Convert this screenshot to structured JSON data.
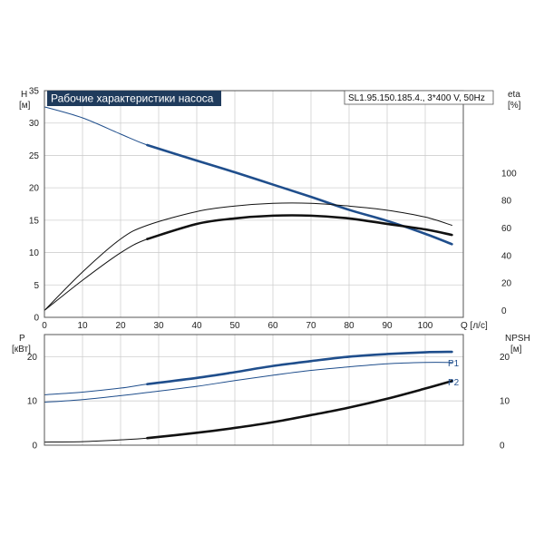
{
  "chart_data": [
    {
      "type": "line",
      "title": "Рабочие характеристики насоса",
      "model": "SL1.95.150.185.4., 3*400 V, 50Hz",
      "xlabel": "Q [л/с]",
      "ylabel_left": "H",
      "ylabel_left_unit": "[м]",
      "ylabel_right": "eta",
      "ylabel_right_unit": "[%]",
      "xlim": [
        0,
        110
      ],
      "ylim_left": [
        0,
        35
      ],
      "ylim_right": [
        -5,
        160
      ],
      "x_ticks": [
        0,
        10,
        20,
        30,
        40,
        50,
        60,
        70,
        80,
        90,
        100
      ],
      "y_left_ticks": [
        0,
        5,
        10,
        15,
        20,
        25,
        30,
        35
      ],
      "y_right_ticks": [
        0,
        20,
        40,
        60,
        80,
        100
      ],
      "grid": true,
      "series": [
        {
          "axis": "left",
          "color": "#1f4e8c",
          "x": [
            0,
            10,
            20,
            27,
            40,
            50,
            60,
            70,
            80,
            90,
            100,
            107
          ],
          "values": [
            32.5,
            30.8,
            28.3,
            26.6,
            24.2,
            22.4,
            20.5,
            18.6,
            16.6,
            14.9,
            12.9,
            11.3
          ],
          "bold_from_x": 27
        },
        {
          "axis": "right",
          "color": "#111111",
          "x": [
            0,
            10,
            20,
            27,
            40,
            50,
            60,
            70,
            80,
            90,
            100,
            107
          ],
          "values": [
            0,
            28,
            52,
            62,
            72,
            76,
            78,
            78,
            76,
            73,
            68,
            62
          ],
          "bold_from_x": 200
        },
        {
          "axis": "right",
          "color": "#111111",
          "x": [
            0,
            10,
            20,
            27,
            40,
            50,
            60,
            70,
            80,
            90,
            100,
            107
          ],
          "values": [
            0,
            22,
            42,
            52,
            63,
            67,
            69,
            69,
            67,
            63,
            59,
            55
          ],
          "bold_from_x": 27
        }
      ]
    },
    {
      "type": "line",
      "ylabel_left": "P",
      "ylabel_left_unit": "[кВт]",
      "ylabel_right": "NPSH",
      "ylabel_right_unit": "[м]",
      "xlim": [
        0,
        110
      ],
      "ylim_left": [
        0,
        25
      ],
      "ylim_right": [
        0,
        25
      ],
      "y_left_ticks": [
        0,
        10,
        20
      ],
      "y_right_ticks": [
        0,
        10,
        20
      ],
      "grid": true,
      "series": [
        {
          "name": "P1",
          "axis": "left",
          "color": "#1f4e8c",
          "x": [
            0,
            10,
            20,
            27,
            40,
            50,
            60,
            70,
            80,
            90,
            100,
            107
          ],
          "values": [
            11.4,
            12.0,
            12.9,
            13.8,
            15.2,
            16.5,
            17.9,
            19.0,
            20.0,
            20.6,
            21.0,
            21.1
          ],
          "bold_from_x": 27
        },
        {
          "name": "P2",
          "axis": "left",
          "color": "#1f4e8c",
          "x": [
            0,
            10,
            20,
            27,
            40,
            50,
            60,
            70,
            80,
            90,
            100,
            107
          ],
          "values": [
            9.7,
            10.3,
            11.2,
            11.9,
            13.3,
            14.6,
            15.8,
            16.9,
            17.7,
            18.4,
            18.7,
            18.7
          ],
          "bold_from_x": 200
        },
        {
          "axis": "right",
          "color": "#111111",
          "x": [
            0,
            10,
            20,
            27,
            40,
            50,
            60,
            70,
            80,
            90,
            100,
            107
          ],
          "values": [
            0.7,
            0.8,
            1.2,
            1.6,
            2.8,
            3.9,
            5.2,
            6.8,
            8.5,
            10.5,
            12.8,
            14.5
          ],
          "bold_from_x": 27
        }
      ]
    }
  ]
}
